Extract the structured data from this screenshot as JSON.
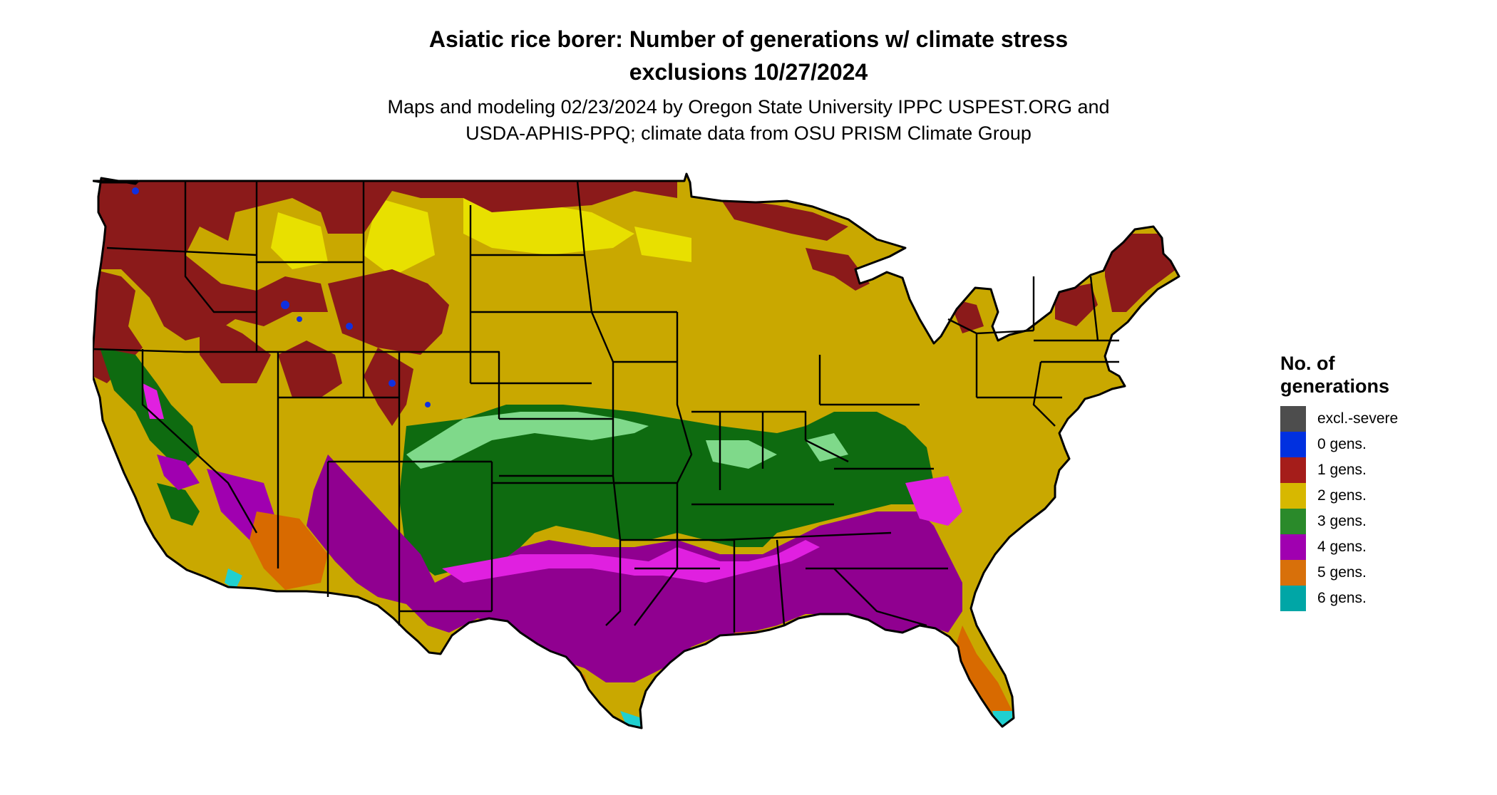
{
  "title_line1": "Asiatic rice borer: Number of generations w/ climate stress",
  "title_line2": "exclusions 10/27/2024",
  "subtitle_line1": "Maps and modeling 02/23/2024 by Oregon State University IPPC USPEST.ORG and",
  "subtitle_line2": "USDA-APHIS-PPQ; climate data from OSU PRISM Climate Group",
  "legend": {
    "title_line1": "No. of",
    "title_line2": "generations",
    "items": [
      {
        "label": "excl.-severe",
        "color": "#4d4d4d"
      },
      {
        "label": "0 gens.",
        "color": "#0030e0"
      },
      {
        "label": "1 gens.",
        "color": "#a51d1a"
      },
      {
        "label": "2 gens.",
        "color": "#d7b800"
      },
      {
        "label": "3 gens.",
        "color": "#2a8a2a"
      },
      {
        "label": "4 gens.",
        "color": "#a000b0"
      },
      {
        "label": "5 gens.",
        "color": "#d8700a"
      },
      {
        "label": "6 gens.",
        "color": "#00a6a6"
      }
    ]
  },
  "map_colors": {
    "one_gen": "#8b1a1a",
    "two_gen": "#c9a800",
    "two_gen_bright": "#e8e000",
    "three_gen": "#0e6b10",
    "three_gen_light": "#7fd98a",
    "four_gen": "#900090",
    "four_gen_bright": "#e020e0",
    "five_gen": "#d86a00",
    "six_gen": "#20d0d0",
    "zero_gen": "#1030e0"
  }
}
